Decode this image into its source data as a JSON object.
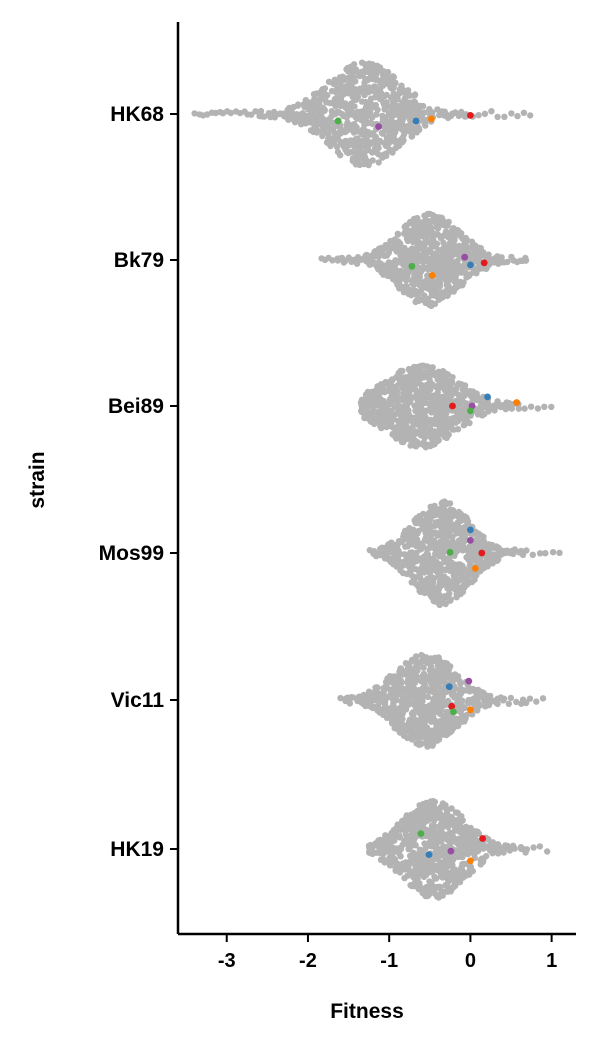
{
  "chart_data": {
    "type": "scatter",
    "subtype": "swarm",
    "title": "",
    "xlabel": "Fitness",
    "ylabel": "strain",
    "xlim": [
      -3.6,
      1.3
    ],
    "x_ticks": [
      -3,
      -2,
      -1,
      0,
      1
    ],
    "x_tick_labels": [
      "-3",
      "-2",
      "-1",
      "0",
      "1"
    ],
    "categories": [
      "HK68",
      "Bk79",
      "Bei89",
      "Mos99",
      "Vic11",
      "HK19"
    ],
    "grid": false,
    "legend": "none",
    "background_point_color": "#b3b3b3",
    "highlight_colors": {
      "red": "#e41a1c",
      "blue": "#377eb8",
      "green": "#4daf4a",
      "purple": "#984ea3",
      "orange": "#ff7f00"
    },
    "distributions": [
      {
        "strain": "HK68",
        "center": -1.3,
        "spread": 0.45,
        "min": -3.4,
        "max": 0.75,
        "width": 1.0
      },
      {
        "strain": "Bk79",
        "center": -0.5,
        "spread": 0.38,
        "min": -1.85,
        "max": 0.7,
        "width": 0.9
      },
      {
        "strain": "Bei89",
        "center": -0.6,
        "spread": 0.45,
        "min": -1.35,
        "max": 1.0,
        "width": 0.8
      },
      {
        "strain": "Mos99",
        "center": -0.35,
        "spread": 0.35,
        "min": -1.25,
        "max": 1.1,
        "width": 1.0
      },
      {
        "strain": "Vic11",
        "center": -0.55,
        "spread": 0.38,
        "min": -1.6,
        "max": 0.9,
        "width": 0.9
      },
      {
        "strain": "HK19",
        "center": -0.45,
        "spread": 0.38,
        "min": -1.25,
        "max": 0.95,
        "width": 0.95
      }
    ],
    "highlighted_points": [
      {
        "strain": "HK68",
        "color": "green",
        "x": -1.63,
        "offset": -0.1
      },
      {
        "strain": "HK68",
        "color": "purple",
        "x": -1.13,
        "offset": -0.18
      },
      {
        "strain": "HK68",
        "color": "blue",
        "x": -0.67,
        "offset": -0.1
      },
      {
        "strain": "HK68",
        "color": "orange",
        "x": -0.48,
        "offset": -0.07
      },
      {
        "strain": "HK68",
        "color": "red",
        "x": 0.0,
        "offset": -0.02
      },
      {
        "strain": "Bk79",
        "color": "purple",
        "x": -0.07,
        "offset": 0.04
      },
      {
        "strain": "Bk79",
        "color": "red",
        "x": 0.17,
        "offset": -0.04
      },
      {
        "strain": "Bk79",
        "color": "blue",
        "x": 0.0,
        "offset": -0.07
      },
      {
        "strain": "Bk79",
        "color": "green",
        "x": -0.72,
        "offset": -0.09
      },
      {
        "strain": "Bk79",
        "color": "orange",
        "x": -0.47,
        "offset": -0.22
      },
      {
        "strain": "Bei89",
        "color": "blue",
        "x": 0.21,
        "offset": 0.13
      },
      {
        "strain": "Bei89",
        "color": "orange",
        "x": 0.57,
        "offset": 0.05
      },
      {
        "strain": "Bei89",
        "color": "red",
        "x": -0.22,
        "offset": 0.0
      },
      {
        "strain": "Bei89",
        "color": "purple",
        "x": 0.02,
        "offset": 0.0
      },
      {
        "strain": "Bei89",
        "color": "green",
        "x": 0.0,
        "offset": -0.07
      },
      {
        "strain": "Mos99",
        "color": "blue",
        "x": 0.0,
        "offset": 0.33
      },
      {
        "strain": "Mos99",
        "color": "purple",
        "x": 0.0,
        "offset": 0.18
      },
      {
        "strain": "Mos99",
        "color": "green",
        "x": -0.25,
        "offset": 0.01
      },
      {
        "strain": "Mos99",
        "color": "red",
        "x": 0.14,
        "offset": 0.0
      },
      {
        "strain": "Mos99",
        "color": "orange",
        "x": 0.06,
        "offset": -0.22
      },
      {
        "strain": "Vic11",
        "color": "purple",
        "x": -0.02,
        "offset": 0.27
      },
      {
        "strain": "Vic11",
        "color": "blue",
        "x": -0.26,
        "offset": 0.19
      },
      {
        "strain": "Vic11",
        "color": "red",
        "x": -0.23,
        "offset": -0.09
      },
      {
        "strain": "Vic11",
        "color": "orange",
        "x": 0.0,
        "offset": -0.14
      },
      {
        "strain": "Vic11",
        "color": "green",
        "x": -0.21,
        "offset": -0.17
      },
      {
        "strain": "HK19",
        "color": "green",
        "x": -0.61,
        "offset": 0.22
      },
      {
        "strain": "HK19",
        "color": "red",
        "x": 0.15,
        "offset": 0.15
      },
      {
        "strain": "HK19",
        "color": "purple",
        "x": -0.24,
        "offset": -0.03
      },
      {
        "strain": "HK19",
        "color": "blue",
        "x": -0.51,
        "offset": -0.08
      },
      {
        "strain": "HK19",
        "color": "orange",
        "x": 0.0,
        "offset": -0.17
      }
    ]
  }
}
